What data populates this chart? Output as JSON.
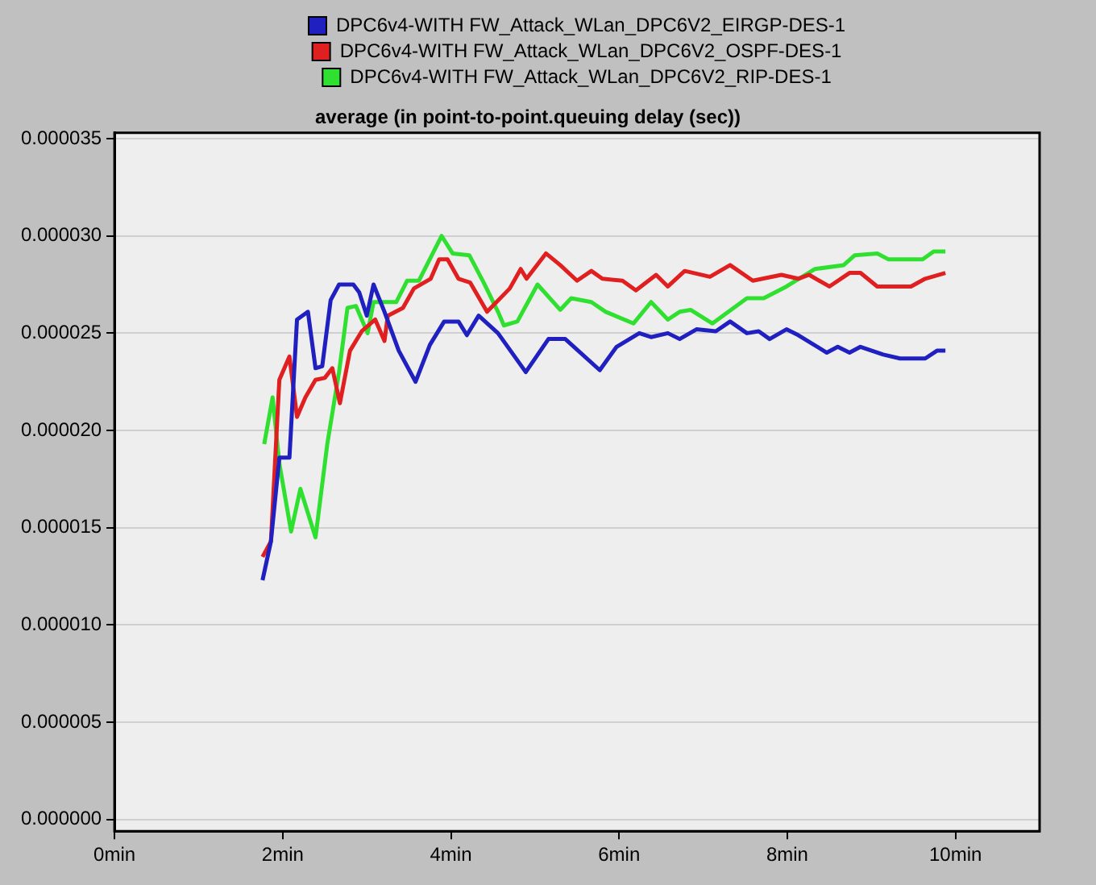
{
  "chart_data": {
    "type": "line",
    "title": "average (in point-to-point.queuing delay (sec))",
    "legend": "top",
    "grid": "y",
    "xlim": [
      0,
      11
    ],
    "ylim": [
      -6e-07,
      3.53e-05
    ],
    "xticks": [
      {
        "value": 0,
        "label": "0min"
      },
      {
        "value": 2,
        "label": "2min"
      },
      {
        "value": 4,
        "label": "4min"
      },
      {
        "value": 6,
        "label": "6min"
      },
      {
        "value": 8,
        "label": "8min"
      },
      {
        "value": 10,
        "label": "10min"
      }
    ],
    "yticks": [
      {
        "value": 0,
        "label": "0.000000"
      },
      {
        "value": 5e-06,
        "label": "0.000005"
      },
      {
        "value": 1e-05,
        "label": "0.000010"
      },
      {
        "value": 1.5e-05,
        "label": "0.000015"
      },
      {
        "value": 2e-05,
        "label": "0.000020"
      },
      {
        "value": 2.5e-05,
        "label": "0.000025"
      },
      {
        "value": 3e-05,
        "label": "0.000030"
      },
      {
        "value": 3.5e-05,
        "label": "0.000035"
      }
    ],
    "series": [
      {
        "name": "DPC6v4-WITH FW_Attack_WLan_DPC6V2_EIRGP-DES-1",
        "color": "#2020c0",
        "x": [
          1.76,
          1.86,
          1.96,
          2.08,
          2.17,
          2.3,
          2.39,
          2.47,
          2.57,
          2.67,
          2.84,
          2.91,
          3.0,
          3.08,
          3.21,
          3.38,
          3.58,
          3.75,
          3.92,
          4.09,
          4.19,
          4.33,
          4.56,
          4.89,
          5.16,
          5.36,
          5.77,
          5.97,
          6.24,
          6.38,
          6.58,
          6.72,
          6.92,
          7.15,
          7.32,
          7.52,
          7.66,
          7.79,
          7.99,
          8.13,
          8.47,
          8.6,
          8.74,
          8.87,
          9.14,
          9.34,
          9.64,
          9.78,
          9.88
        ],
        "values": [
          1.23e-05,
          1.43e-05,
          1.86e-05,
          1.86e-05,
          2.57e-05,
          2.61e-05,
          2.32e-05,
          2.33e-05,
          2.67e-05,
          2.75e-05,
          2.75e-05,
          2.71e-05,
          2.59e-05,
          2.75e-05,
          2.61e-05,
          2.41e-05,
          2.25e-05,
          2.44e-05,
          2.56e-05,
          2.56e-05,
          2.49e-05,
          2.59e-05,
          2.5e-05,
          2.3e-05,
          2.47e-05,
          2.47e-05,
          2.31e-05,
          2.43e-05,
          2.5e-05,
          2.48e-05,
          2.5e-05,
          2.47e-05,
          2.52e-05,
          2.51e-05,
          2.56e-05,
          2.5e-05,
          2.51e-05,
          2.47e-05,
          2.52e-05,
          2.49e-05,
          2.4e-05,
          2.43e-05,
          2.4e-05,
          2.43e-05,
          2.39e-05,
          2.37e-05,
          2.37e-05,
          2.41e-05,
          2.41e-05
        ]
      },
      {
        "name": "DPC6v4-WITH FW_Attack_WLan_DPC6V2_OSPF-DES-1",
        "color": "#e02020",
        "x": [
          1.76,
          1.86,
          1.96,
          2.08,
          2.17,
          2.27,
          2.39,
          2.5,
          2.59,
          2.68,
          2.8,
          2.94,
          3.1,
          3.21,
          3.25,
          3.43,
          3.56,
          3.76,
          3.86,
          3.96,
          4.09,
          4.23,
          4.43,
          4.7,
          4.83,
          4.9,
          5.13,
          5.3,
          5.5,
          5.67,
          5.8,
          6.04,
          6.2,
          6.44,
          6.58,
          6.78,
          7.08,
          7.32,
          7.59,
          7.93,
          8.13,
          8.26,
          8.5,
          8.74,
          8.87,
          9.07,
          9.47,
          9.64,
          9.88
        ],
        "values": [
          1.35e-05,
          1.43e-05,
          2.26e-05,
          2.38e-05,
          2.07e-05,
          2.17e-05,
          2.26e-05,
          2.27e-05,
          2.32e-05,
          2.14e-05,
          2.41e-05,
          2.51e-05,
          2.57e-05,
          2.46e-05,
          2.59e-05,
          2.63e-05,
          2.73e-05,
          2.78e-05,
          2.88e-05,
          2.88e-05,
          2.78e-05,
          2.76e-05,
          2.61e-05,
          2.73e-05,
          2.83e-05,
          2.78e-05,
          2.91e-05,
          2.85e-05,
          2.77e-05,
          2.82e-05,
          2.78e-05,
          2.77e-05,
          2.72e-05,
          2.8e-05,
          2.74e-05,
          2.82e-05,
          2.79e-05,
          2.85e-05,
          2.77e-05,
          2.8e-05,
          2.78e-05,
          2.8e-05,
          2.74e-05,
          2.81e-05,
          2.81e-05,
          2.74e-05,
          2.74e-05,
          2.78e-05,
          2.81e-05
        ]
      },
      {
        "name": "DPC6v4-WITH FW_Attack_WLan_DPC6V2_RIP-DES-1",
        "color": "#30e030",
        "x": [
          1.78,
          1.88,
          1.96,
          2.1,
          2.21,
          2.39,
          2.53,
          2.67,
          2.77,
          2.87,
          3.01,
          3.08,
          3.35,
          3.48,
          3.62,
          3.89,
          4.02,
          4.22,
          4.39,
          4.56,
          4.63,
          4.79,
          5.03,
          5.3,
          5.43,
          5.67,
          5.84,
          6.17,
          6.38,
          6.58,
          6.72,
          6.85,
          7.11,
          7.52,
          7.72,
          7.99,
          8.33,
          8.67,
          8.8,
          9.07,
          9.2,
          9.61,
          9.74,
          9.88
        ],
        "values": [
          1.93e-05,
          2.17e-05,
          1.83e-05,
          1.48e-05,
          1.7e-05,
          1.45e-05,
          1.93e-05,
          2.3e-05,
          2.63e-05,
          2.64e-05,
          2.5e-05,
          2.66e-05,
          2.66e-05,
          2.77e-05,
          2.77e-05,
          3e-05,
          2.91e-05,
          2.9e-05,
          2.76e-05,
          2.61e-05,
          2.54e-05,
          2.56e-05,
          2.75e-05,
          2.62e-05,
          2.68e-05,
          2.66e-05,
          2.61e-05,
          2.55e-05,
          2.66e-05,
          2.57e-05,
          2.61e-05,
          2.62e-05,
          2.55e-05,
          2.68e-05,
          2.68e-05,
          2.74e-05,
          2.83e-05,
          2.85e-05,
          2.9e-05,
          2.91e-05,
          2.88e-05,
          2.88e-05,
          2.92e-05,
          2.92e-05
        ]
      }
    ]
  }
}
